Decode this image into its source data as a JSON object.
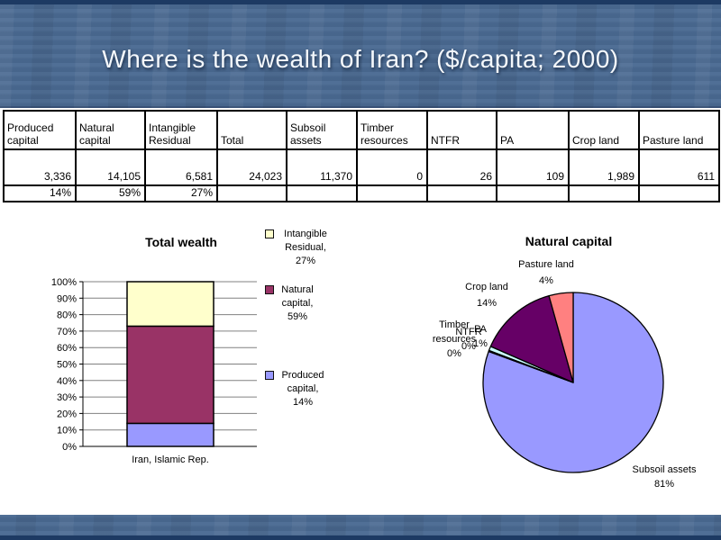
{
  "slide": {
    "title": "Where is the wealth of Iran? ($/capita; 2000)"
  },
  "table": {
    "headers": [
      "Produced capital",
      "Natural capital",
      "Intangible Residual",
      "Total",
      "Subsoil assets",
      "Timber resources",
      "NTFR",
      "PA",
      "Crop land",
      "Pasture land"
    ],
    "values": [
      "3,336",
      "14,105",
      "6,581",
      "24,023",
      "11,370",
      "0",
      "26",
      "109",
      "1,989",
      "611"
    ],
    "percents": [
      "14%",
      "59%",
      "27%",
      "",
      "",
      "",
      "",
      "",
      "",
      ""
    ]
  },
  "chart_data": [
    {
      "type": "bar",
      "subtype": "stacked-100pct-column",
      "title": "Total wealth",
      "categories": [
        "Iran, Islamic Rep."
      ],
      "series": [
        {
          "name": "Produced capital",
          "values": [
            14
          ],
          "color": "#9999ff"
        },
        {
          "name": "Natural capital",
          "values": [
            59
          ],
          "color": "#993366"
        },
        {
          "name": "Intangible Residual",
          "values": [
            27
          ],
          "color": "#ffffcc"
        }
      ],
      "ylabel": "",
      "xlabel": "",
      "ylim": [
        0,
        100
      ],
      "ytick_step": 10,
      "ytick_suffix": "%",
      "grid": true,
      "legend_position": "right",
      "legend": [
        {
          "label": "Intangible Residual, 27%",
          "color": "#ffffcc"
        },
        {
          "label": "Natural capital, 59%",
          "color": "#993366"
        },
        {
          "label": "Produced capital, 14%",
          "color": "#9999ff"
        }
      ]
    },
    {
      "type": "pie",
      "title": "Natural capital",
      "start_angle_deg": 0,
      "direction": "clockwise",
      "slices": [
        {
          "label": "Subsoil assets",
          "value": 11370,
          "pct": "81%",
          "color": "#9999ff"
        },
        {
          "label": "Timber resources",
          "value": 0,
          "pct": "0%",
          "color": "#993366"
        },
        {
          "label": "NTFR",
          "value": 26,
          "pct": "0%",
          "color": "#ffffcc"
        },
        {
          "label": "PA",
          "value": 109,
          "pct": "1%",
          "color": "#ccffff"
        },
        {
          "label": "Crop land",
          "value": 1989,
          "pct": "14%",
          "color": "#660066"
        },
        {
          "label": "Pasture land",
          "value": 611,
          "pct": "4%",
          "color": "#ff8080"
        }
      ]
    }
  ],
  "colors": {
    "background": "#4a6a92",
    "border_strip": "#1d3a63",
    "title_text": "#f4f8fc",
    "content_bg": "#ffffff",
    "grid_line": "#808080",
    "axis_line": "#000000",
    "table_border": "#000000"
  }
}
